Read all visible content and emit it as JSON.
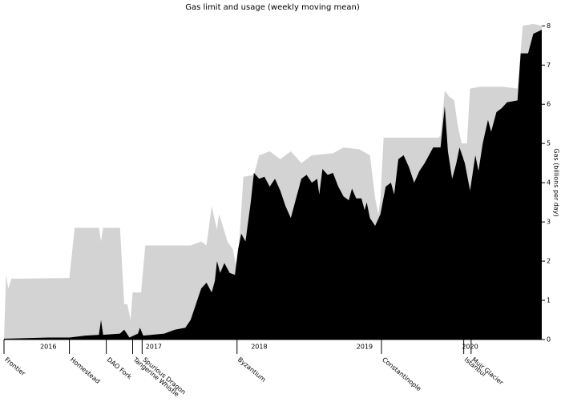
{
  "chart_data": {
    "type": "area",
    "title": "Gas limit and usage (weekly moving mean)",
    "y_label": "Gas (billions per day)",
    "xlim": [
      2015.58,
      2020.68
    ],
    "ylim": [
      0,
      8.1
    ],
    "xticks": [
      2016,
      2017,
      2018,
      2019,
      2020
    ],
    "yticks": [
      0,
      1,
      2,
      3,
      4,
      5,
      6,
      7,
      8
    ],
    "series": [
      {
        "color": "#d3d3d3",
        "x": [
          2015.58,
          2015.6,
          2015.62,
          2015.65,
          2016.2,
          2016.25,
          2016.48,
          2016.5,
          2016.52,
          2016.68,
          2016.72,
          2016.75,
          2016.78,
          2016.8,
          2016.88,
          2016.92,
          2017.35,
          2017.45,
          2017.5,
          2017.55,
          2017.6,
          2017.62,
          2017.7,
          2017.75,
          2017.78,
          2017.8,
          2017.85,
          2017.95,
          2018.0,
          2018.1,
          2018.2,
          2018.3,
          2018.4,
          2018.5,
          2018.7,
          2018.8,
          2018.95,
          2019.05,
          2019.1,
          2019.13,
          2019.15,
          2019.18,
          2019.7,
          2019.72,
          2019.76,
          2019.8,
          2019.85,
          2019.88,
          2019.92,
          2019.97,
          2020.0,
          2020.1,
          2020.3,
          2020.45,
          2020.5,
          2020.6,
          2020.68
        ],
        "values": [
          0,
          1.65,
          1.3,
          1.55,
          1.57,
          2.85,
          2.85,
          2.5,
          2.85,
          2.85,
          0.9,
          0.9,
          0.5,
          1.2,
          1.2,
          2.4,
          2.4,
          2.5,
          2.4,
          3.4,
          2.8,
          3.2,
          2.5,
          2.3,
          1.9,
          2.0,
          4.15,
          4.2,
          4.7,
          4.8,
          4.6,
          4.8,
          4.5,
          4.7,
          4.75,
          4.9,
          4.85,
          4.7,
          3.6,
          3.2,
          3.6,
          5.15,
          5.15,
          5.2,
          6.35,
          6.2,
          6.1,
          5.5,
          5.0,
          5.0,
          6.4,
          6.45,
          6.45,
          6.4,
          8.0,
          8.05,
          8.0
        ]
      },
      {
        "color": "#000000",
        "x": [
          2015.58,
          2016.0,
          2016.2,
          2016.35,
          2016.48,
          2016.5,
          2016.52,
          2016.68,
          2016.72,
          2016.77,
          2016.85,
          2016.87,
          2016.9,
          2017.1,
          2017.2,
          2017.3,
          2017.35,
          2017.4,
          2017.45,
          2017.5,
          2017.55,
          2017.58,
          2017.6,
          2017.63,
          2017.67,
          2017.72,
          2017.77,
          2017.8,
          2017.83,
          2017.87,
          2017.92,
          2017.95,
          2018.0,
          2018.05,
          2018.1,
          2018.15,
          2018.2,
          2018.25,
          2018.3,
          2018.35,
          2018.4,
          2018.45,
          2018.5,
          2018.55,
          2018.57,
          2018.6,
          2018.65,
          2018.7,
          2018.75,
          2018.8,
          2018.85,
          2018.88,
          2018.92,
          2018.97,
          2019.0,
          2019.02,
          2019.05,
          2019.1,
          2019.15,
          2019.2,
          2019.25,
          2019.28,
          2019.32,
          2019.37,
          2019.42,
          2019.47,
          2019.52,
          2019.57,
          2019.65,
          2019.72,
          2019.76,
          2019.79,
          2019.83,
          2019.87,
          2019.9,
          2019.95,
          2020.0,
          2020.05,
          2020.08,
          2020.12,
          2020.17,
          2020.2,
          2020.25,
          2020.3,
          2020.35,
          2020.45,
          2020.48,
          2020.55,
          2020.6,
          2020.68
        ],
        "values": [
          0.02,
          0.05,
          0.05,
          0.1,
          0.12,
          0.5,
          0.12,
          0.15,
          0.25,
          0.05,
          0.15,
          0.3,
          0.1,
          0.15,
          0.25,
          0.3,
          0.5,
          0.9,
          1.3,
          1.45,
          1.2,
          1.5,
          2.0,
          1.7,
          1.95,
          1.7,
          1.65,
          2.3,
          2.7,
          2.5,
          3.5,
          4.25,
          4.1,
          4.15,
          3.9,
          4.1,
          3.8,
          3.4,
          3.1,
          3.6,
          4.1,
          4.2,
          4.0,
          4.1,
          3.7,
          4.35,
          4.2,
          4.25,
          3.9,
          3.65,
          3.55,
          3.85,
          3.6,
          3.6,
          3.3,
          3.5,
          3.1,
          2.9,
          3.2,
          3.9,
          4.0,
          3.7,
          4.6,
          4.7,
          4.4,
          4.0,
          4.3,
          4.5,
          4.9,
          4.9,
          5.95,
          4.8,
          4.1,
          4.5,
          4.9,
          4.5,
          3.8,
          4.7,
          4.3,
          5.0,
          5.6,
          5.3,
          5.8,
          5.9,
          6.05,
          6.1,
          7.3,
          7.3,
          7.8,
          7.9
        ]
      }
    ],
    "events": [
      {
        "value": 2015.58,
        "label": "Frontier"
      },
      {
        "value": 2016.2,
        "label": "Homestead"
      },
      {
        "value": 2016.55,
        "label": "DAO Fork"
      },
      {
        "value": 2016.8,
        "label": "Tangerine Whistle"
      },
      {
        "value": 2016.89,
        "label": "Spurious Dragon"
      },
      {
        "value": 2017.79,
        "label": "Byzantium"
      },
      {
        "value": 2019.16,
        "label": "Constantinople"
      },
      {
        "value": 2019.94,
        "label": "Istanbul"
      },
      {
        "value": 2020.01,
        "label": "Muir Glacier"
      }
    ]
  }
}
